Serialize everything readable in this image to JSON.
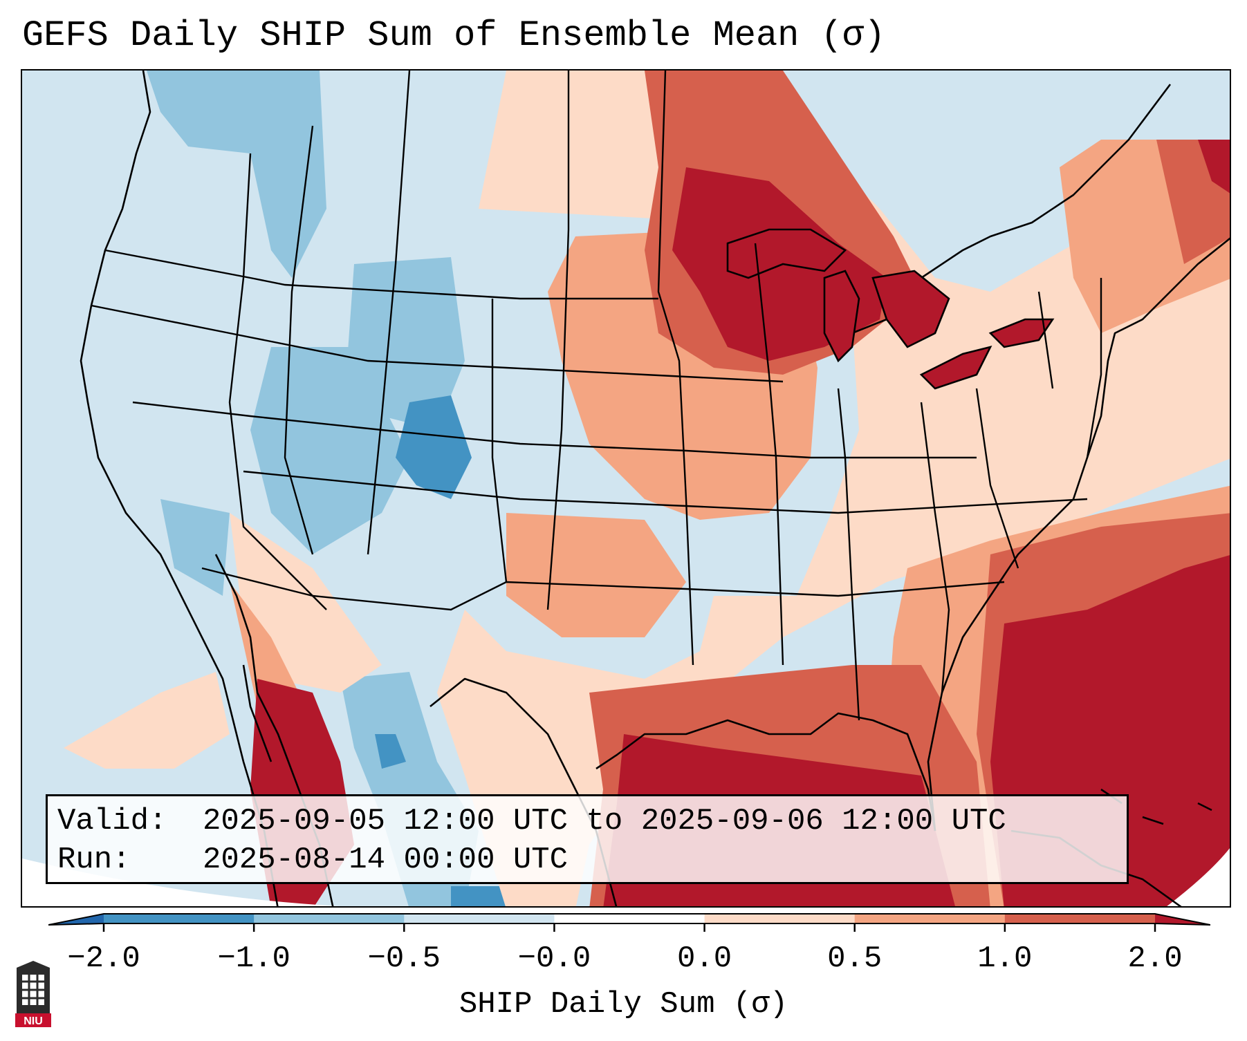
{
  "title": "GEFS Daily SHIP Sum of Ensemble Mean (σ)",
  "info": {
    "valid_label": "Valid:",
    "valid_value": "2025-09-05 12:00 UTC to 2025-09-06 12:00 UTC",
    "run_label": "Run:",
    "run_value": "2025-08-14 00:00 UTC"
  },
  "colorbar": {
    "title": "SHIP Daily Sum (σ)",
    "ticks": [
      "−2.0",
      "−1.0",
      "−0.5",
      "−0.0",
      "0.0",
      "0.5",
      "1.0",
      "2.0"
    ],
    "colors": {
      "below": "#2166ac",
      "bins": [
        "#4393c3",
        "#92c5de",
        "#d1e5f0",
        "#ffffff",
        "#fddbc7",
        "#f4a582",
        "#d6604d"
      ],
      "above": "#b2182b"
    }
  },
  "logo": {
    "text": "NIU"
  }
}
